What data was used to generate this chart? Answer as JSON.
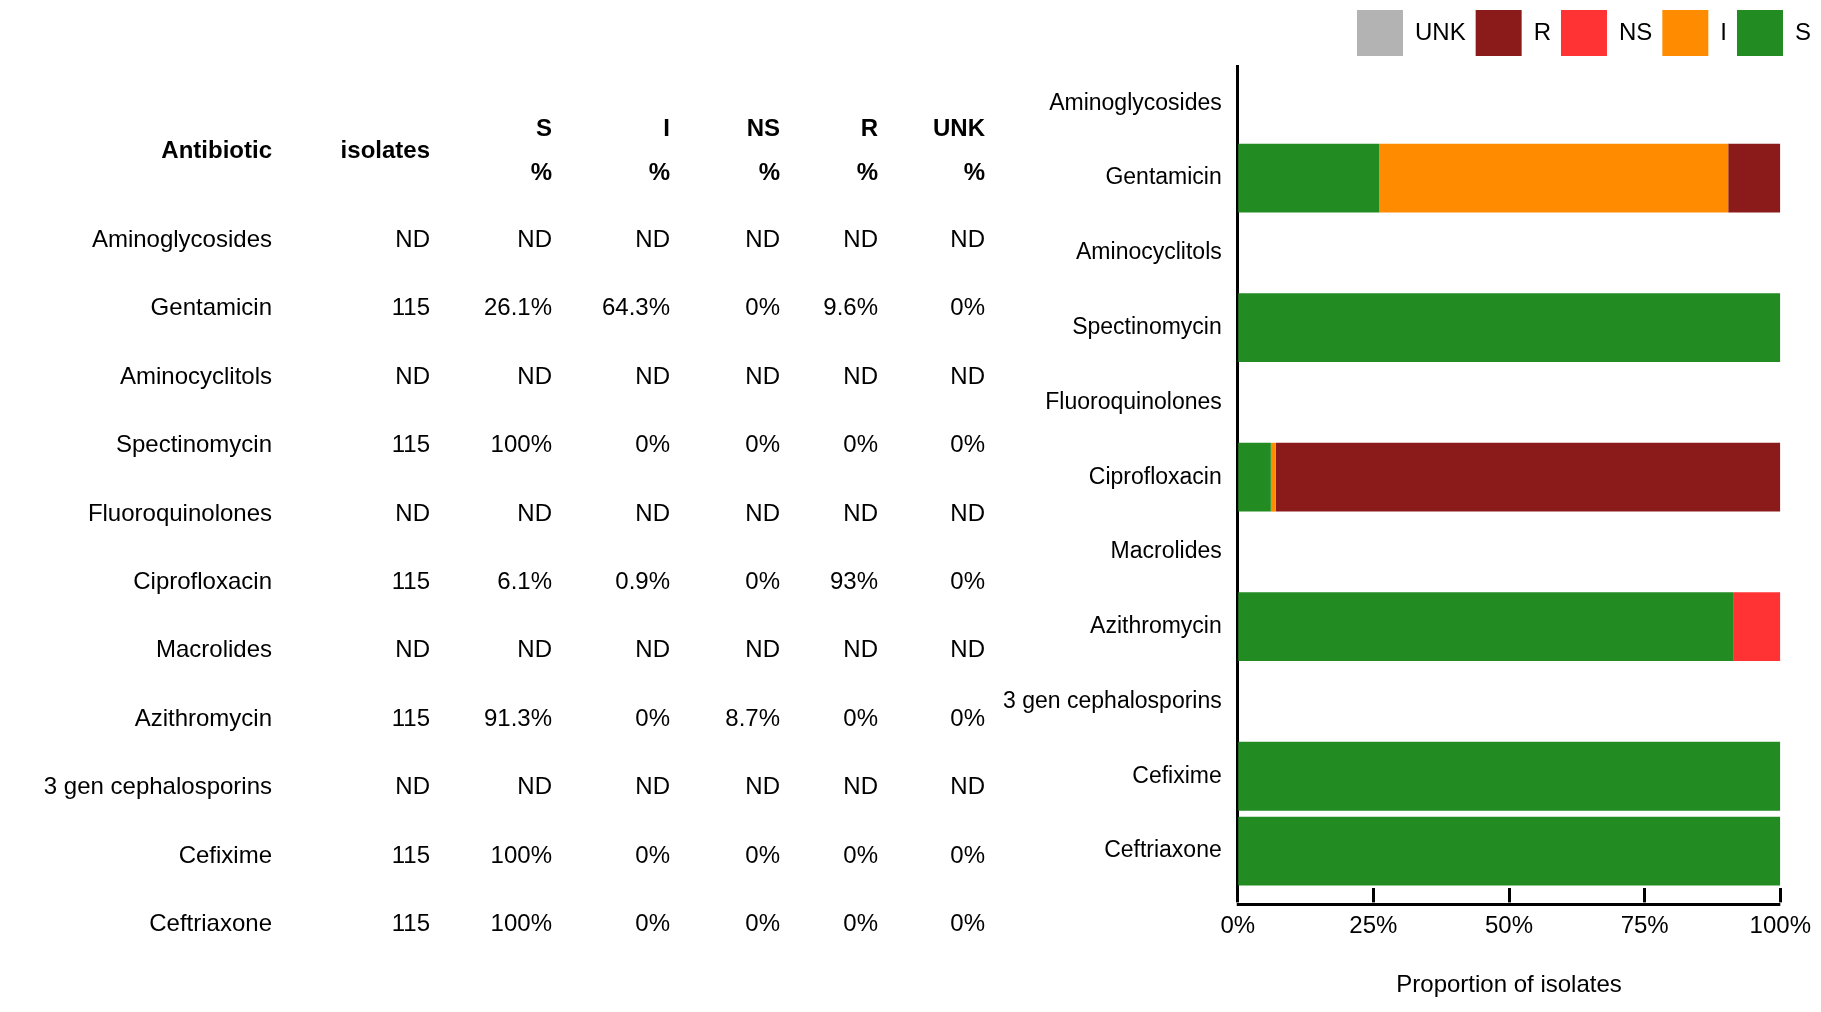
{
  "chart_data": [
    {
      "type": "other",
      "annotations": [
        "Antibiotic",
        "isolates",
        "S",
        "I",
        "NS",
        "R",
        "UNK",
        "%",
        "%",
        "%",
        "%",
        "%",
        "Aminoglycosides",
        "ND",
        "ND",
        "ND",
        "ND",
        "ND",
        "ND",
        "Gentamicin",
        "115",
        "26.1%",
        "64.3%",
        "0%",
        "9.6%",
        "0%",
        "Aminocyclitols",
        "ND",
        "ND",
        "ND",
        "ND",
        "ND",
        "ND",
        "Spectinomycin",
        "115",
        "100%",
        "0%",
        "0%",
        "0%",
        "0%",
        "Fluoroquinolones",
        "ND",
        "ND",
        "ND",
        "ND",
        "ND",
        "ND",
        "Ciprofloxacin",
        "115",
        "6.1%",
        "0.9%",
        "0%",
        "93%",
        "0%",
        "Macrolides",
        "ND",
        "ND",
        "ND",
        "ND",
        "ND",
        "ND",
        "Azithromycin",
        "115",
        "91.3%",
        "0%",
        "8.7%",
        "0%",
        "0%",
        "3 gen cephalosporins",
        "ND",
        "ND",
        "ND",
        "ND",
        "ND",
        "ND",
        "Cefixime",
        "115",
        "100%",
        "0%",
        "0%",
        "0%",
        "0%",
        "Ceftriaxone",
        "115",
        "100%",
        "0%",
        "0%",
        "0%",
        "0%"
      ]
    },
    {
      "type": "bar",
      "orientation": "horizontal",
      "stacked": true,
      "categories": [
        "Aminoglycosides",
        "Gentamicin",
        "Aminocyclitols",
        "Spectinomycin",
        "Fluoroquinolones",
        "Ciprofloxacin",
        "Macrolides",
        "Azithromycin",
        "3 gen cephalosporins",
        "Cefixime",
        "Ceftriaxone"
      ],
      "series": [
        {
          "name": "S",
          "color": "#228b22",
          "values": [
            null,
            26.1,
            null,
            100,
            null,
            6.1,
            null,
            91.3,
            null,
            100,
            100
          ]
        },
        {
          "name": "I",
          "color": "#ff8c00",
          "values": [
            null,
            64.3,
            null,
            0,
            null,
            0.9,
            null,
            0,
            null,
            0,
            0
          ]
        },
        {
          "name": "NS",
          "color": "#ff3333",
          "values": [
            null,
            0,
            null,
            0,
            null,
            0,
            null,
            8.7,
            null,
            0,
            0
          ]
        },
        {
          "name": "R",
          "color": "#8b1a1a",
          "values": [
            null,
            9.6,
            null,
            0,
            null,
            93,
            null,
            0,
            null,
            0,
            0
          ]
        },
        {
          "name": "UNK",
          "color": "#b3b3b3",
          "values": [
            null,
            0,
            null,
            0,
            null,
            0,
            null,
            0,
            null,
            0,
            0
          ]
        }
      ],
      "xlim": [
        0,
        100
      ],
      "xticks": [
        {
          "value": 0,
          "label": "0%"
        },
        {
          "value": 25,
          "label": "25%"
        },
        {
          "value": 50,
          "label": "50%"
        },
        {
          "value": 75,
          "label": "75%"
        },
        {
          "value": 100,
          "label": "100%"
        }
      ],
      "xlabel": "Proportion of isolates",
      "legend": "top right",
      "grid": false
    }
  ]
}
